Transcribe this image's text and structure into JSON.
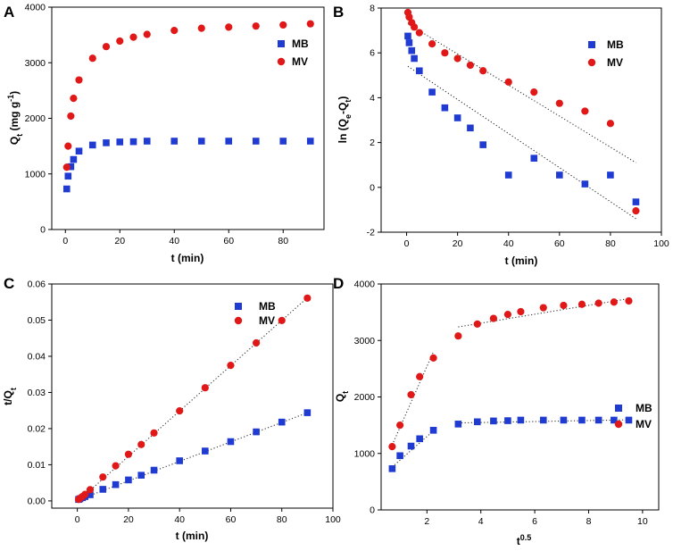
{
  "colors": {
    "MB": "#1f3bd1",
    "MV": "#e01818",
    "axis": "#000000"
  },
  "chart_data": [
    {
      "type": "scatter",
      "panel": "A",
      "title": "",
      "xlabel": "t (min)",
      "ylabel": "Q_t (mg g^-1)",
      "ylabel_parts": {
        "main": "Q",
        "sub": "t",
        "mid": " (mg g",
        "sup": "-1",
        "end": ")"
      },
      "xlim": [
        -5,
        95
      ],
      "ylim": [
        0,
        4000
      ],
      "xticks": [
        0,
        20,
        40,
        60,
        80
      ],
      "yticks": [
        0,
        1000,
        2000,
        3000,
        4000
      ],
      "legend": "top-right",
      "series": [
        {
          "name": "MB",
          "marker": "square",
          "x": [
            0.5,
            1,
            2,
            3,
            5,
            10,
            15,
            20,
            25,
            30,
            40,
            50,
            60,
            70,
            80,
            90
          ],
          "y": [
            730,
            960,
            1130,
            1260,
            1410,
            1520,
            1560,
            1575,
            1580,
            1590,
            1590,
            1590,
            1590,
            1590,
            1590,
            1590
          ]
        },
        {
          "name": "MV",
          "marker": "circle",
          "x": [
            0.5,
            1,
            2,
            3,
            5,
            10,
            15,
            20,
            25,
            30,
            40,
            50,
            60,
            70,
            80,
            90
          ],
          "y": [
            1120,
            1500,
            2040,
            2360,
            2690,
            3080,
            3290,
            3390,
            3460,
            3510,
            3580,
            3620,
            3640,
            3660,
            3680,
            3700
          ]
        }
      ]
    },
    {
      "type": "scatter",
      "panel": "B",
      "title": "",
      "xlabel": "t (min)",
      "ylabel": "ln (Q_e-Q_t)",
      "ylabel_parts": {
        "pre": "ln (Q",
        "sub1": "e",
        "mid": "-Q",
        "sub2": "t",
        "end": ")"
      },
      "xlim": [
        -10,
        100
      ],
      "ylim": [
        -2,
        8
      ],
      "xticks": [
        0,
        20,
        40,
        60,
        80,
        100
      ],
      "yticks": [
        -2,
        0,
        2,
        4,
        6,
        8
      ],
      "legend": "top-right",
      "series": [
        {
          "name": "MB",
          "marker": "square",
          "x": [
            0.5,
            1,
            2,
            3,
            5,
            10,
            15,
            20,
            25,
            30,
            40,
            50,
            60,
            70,
            80,
            90
          ],
          "y": [
            6.75,
            6.45,
            6.1,
            5.75,
            5.2,
            4.25,
            3.55,
            3.1,
            2.65,
            1.9,
            0.55,
            1.3,
            0.55,
            0.15,
            0.55,
            -0.65
          ]
        },
        {
          "name": "MV",
          "marker": "circle",
          "x": [
            0.5,
            1,
            2,
            3,
            5,
            10,
            15,
            20,
            25,
            30,
            40,
            50,
            60,
            70,
            80,
            90
          ],
          "y": [
            7.8,
            7.6,
            7.35,
            7.15,
            6.9,
            6.4,
            6.0,
            5.75,
            5.45,
            5.2,
            4.7,
            4.25,
            3.75,
            3.4,
            2.85,
            -1.05
          ]
        }
      ],
      "fit_lines": [
        {
          "name": "MB fit",
          "x": [
            0.5,
            90
          ],
          "y": [
            5.4,
            -1.4
          ]
        },
        {
          "name": "MV fit",
          "x": [
            0.5,
            90
          ],
          "y": [
            7.3,
            1.1
          ]
        }
      ]
    },
    {
      "type": "scatter",
      "panel": "C",
      "title": "",
      "xlabel": "t (min)",
      "ylabel": "t/Q_t",
      "ylabel_parts": {
        "main": "t/Q",
        "sub": "t"
      },
      "xlim": [
        -10,
        100
      ],
      "ylim": [
        -0.002,
        0.06
      ],
      "xticks": [
        0,
        20,
        40,
        60,
        80,
        100
      ],
      "yticks": [
        0.0,
        0.01,
        0.02,
        0.03,
        0.04,
        0.05,
        0.06
      ],
      "ytick_labels": [
        "0.00",
        "0.01",
        "0.02",
        "0.03",
        "0.04",
        "0.05",
        "0.06"
      ],
      "legend": "top-right",
      "series": [
        {
          "name": "MB",
          "marker": "square",
          "x": [
            0.5,
            1,
            2,
            3,
            5,
            10,
            15,
            20,
            25,
            30,
            40,
            50,
            60,
            70,
            80,
            90
          ],
          "y": [
            0.0004,
            0.0006,
            0.0009,
            0.0012,
            0.0017,
            0.0032,
            0.0045,
            0.0058,
            0.0071,
            0.0085,
            0.0111,
            0.0138,
            0.0164,
            0.0191,
            0.0218,
            0.0244
          ]
        },
        {
          "name": "MV",
          "marker": "circle",
          "x": [
            0.5,
            1,
            2,
            3,
            5,
            10,
            15,
            20,
            25,
            30,
            40,
            50,
            60,
            70,
            80,
            90
          ],
          "y": [
            0.0004,
            0.0007,
            0.0012,
            0.0018,
            0.0031,
            0.0066,
            0.0097,
            0.0129,
            0.0156,
            0.0188,
            0.0249,
            0.0313,
            0.0375,
            0.0437,
            0.0499,
            0.0561
          ]
        }
      ],
      "fit_lines": [
        {
          "name": "MB fit",
          "x": [
            0.5,
            90
          ],
          "y": [
            0.0003,
            0.0244
          ]
        },
        {
          "name": "MV fit",
          "x": [
            0.5,
            90
          ],
          "y": [
            0.0001,
            0.0562
          ]
        }
      ]
    },
    {
      "type": "scatter",
      "panel": "D",
      "title": "",
      "xlabel": "t^0.5",
      "xlabel_parts": {
        "main": "t",
        "sup": "0.5"
      },
      "ylabel": "Q_t",
      "ylabel_parts": {
        "main": "Q",
        "sub": "t"
      },
      "xlim": [
        0.3,
        10.6
      ],
      "ylim": [
        0,
        4000
      ],
      "xticks": [
        2,
        4,
        6,
        8,
        10
      ],
      "yticks": [
        0,
        1000,
        2000,
        3000,
        4000
      ],
      "legend": "right",
      "series": [
        {
          "name": "MB",
          "marker": "square",
          "x": [
            0.71,
            1.0,
            1.41,
            1.73,
            2.24,
            3.16,
            3.87,
            4.47,
            5.0,
            5.48,
            6.32,
            7.07,
            7.75,
            8.37,
            8.94,
            9.49
          ],
          "y": [
            730,
            960,
            1130,
            1260,
            1410,
            1520,
            1560,
            1575,
            1580,
            1590,
            1590,
            1590,
            1590,
            1590,
            1590,
            1590
          ]
        },
        {
          "name": "MV",
          "marker": "circle",
          "x": [
            0.71,
            1.0,
            1.41,
            1.73,
            2.24,
            3.16,
            3.87,
            4.47,
            5.0,
            5.48,
            6.32,
            7.07,
            7.75,
            8.37,
            8.94,
            9.49
          ],
          "y": [
            1120,
            1500,
            2040,
            2360,
            2690,
            3080,
            3290,
            3390,
            3460,
            3510,
            3580,
            3620,
            3640,
            3660,
            3680,
            3700
          ]
        }
      ],
      "fit_lines": [
        {
          "name": "MB fit 1",
          "x": [
            0.71,
            2.24
          ],
          "y": [
            760,
            1400
          ]
        },
        {
          "name": "MB fit 2",
          "x": [
            3.16,
            9.49
          ],
          "y": [
            1540,
            1595
          ]
        },
        {
          "name": "MV fit 1",
          "x": [
            0.71,
            2.24
          ],
          "y": [
            1150,
            2800
          ]
        },
        {
          "name": "MV fit 2",
          "x": [
            3.16,
            9.49
          ],
          "y": [
            3240,
            3740
          ]
        }
      ]
    }
  ]
}
